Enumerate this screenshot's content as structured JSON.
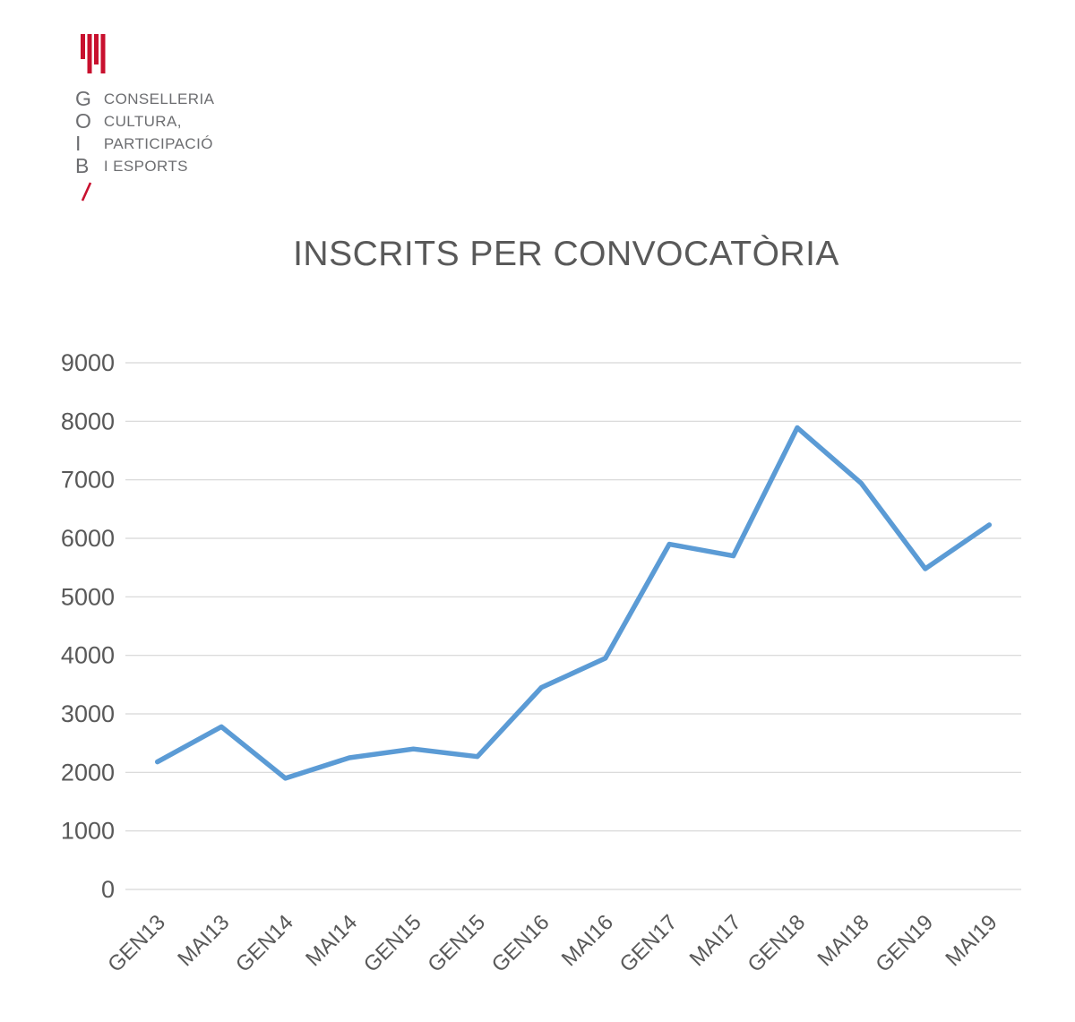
{
  "logo": {
    "letters": [
      "G",
      "O",
      "I",
      "B"
    ],
    "department_lines": [
      "CONSELLERIA",
      "CULTURA,",
      "PARTICIPACIÓ",
      "I ESPORTS"
    ]
  },
  "chart_data": {
    "type": "line",
    "title": "INSCRITS PER CONVOCATÒRIA",
    "categories": [
      "GEN13",
      "MAI13",
      "GEN14",
      "MAI14",
      "GEN15",
      "GEN15",
      "GEN16",
      "MAI16",
      "GEN17",
      "MAI17",
      "GEN18",
      "MAI18",
      "GEN19",
      "MAI19"
    ],
    "values": [
      2180,
      2780,
      1900,
      2250,
      2400,
      2270,
      3450,
      3950,
      5900,
      5700,
      7890,
      6940,
      5480,
      6230
    ],
    "xlabel": "",
    "ylabel": "",
    "ylim": [
      0,
      9000
    ],
    "ytick_step": 1000,
    "grid": true,
    "legend": "none",
    "line_color": "#5B9BD5"
  },
  "colors": {
    "line": "#5B9BD5",
    "grid": "#D6D6D6",
    "text": "#595959",
    "logo_gray": "#6D6E71",
    "logo_red": "#C8102E"
  }
}
